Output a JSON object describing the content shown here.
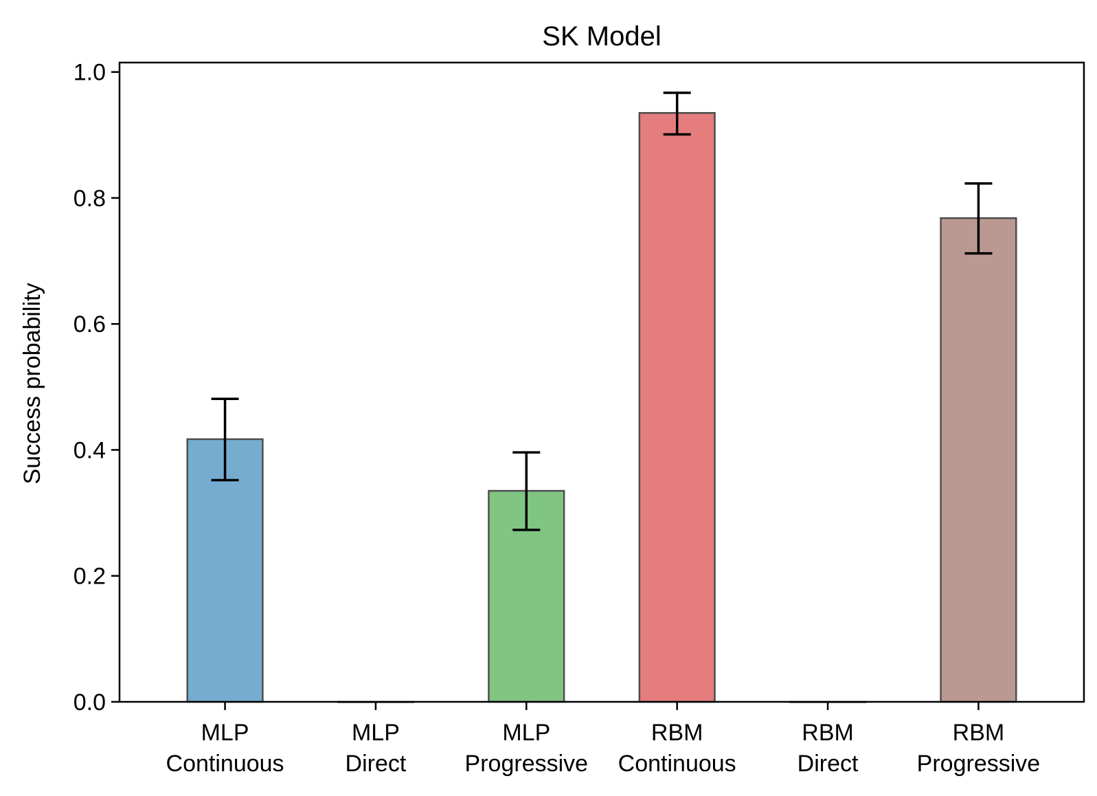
{
  "chart_data": {
    "type": "bar",
    "title": "SK Model",
    "xlabel": "",
    "ylabel": "Success probability",
    "ylim": [
      0,
      1.015
    ],
    "yticks": [
      "0.0",
      "0.2",
      "0.4",
      "0.6",
      "0.8",
      "1.0"
    ],
    "grid": false,
    "categories": [
      [
        "MLP",
        "Continuous"
      ],
      [
        "MLP",
        "Direct"
      ],
      [
        "MLP",
        "Progressive"
      ],
      [
        "RBM",
        "Continuous"
      ],
      [
        "RBM",
        "Direct"
      ],
      [
        "RBM",
        "Progressive"
      ]
    ],
    "values": [
      0.417,
      0.0,
      0.335,
      0.935,
      0.0,
      0.768
    ],
    "error_low": [
      0.352,
      null,
      0.273,
      0.901,
      null,
      0.712
    ],
    "error_high": [
      0.481,
      null,
      0.396,
      0.967,
      null,
      0.823
    ],
    "colors": [
      "#77acd1",
      "#77acd1",
      "#80c582",
      "#e57d7e",
      "#e57d7e",
      "#b99991"
    ]
  }
}
